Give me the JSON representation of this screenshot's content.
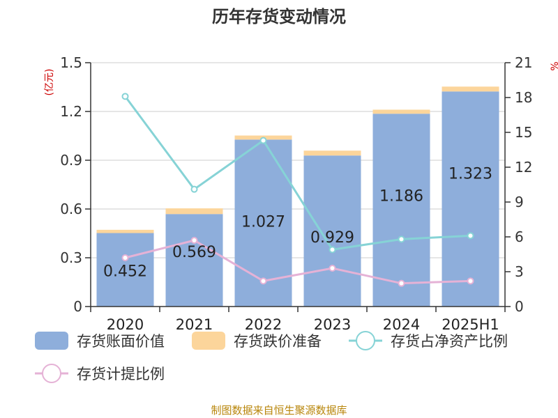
{
  "chart_data": {
    "type": "bar",
    "title": "历年存货变动情况",
    "left_unit": "(亿元)",
    "right_unit": "%",
    "categories": [
      "2020",
      "2021",
      "2022",
      "2023",
      "2024",
      "2025H1"
    ],
    "left_axis": {
      "ylim": [
        0,
        1.5
      ],
      "ticks": [
        "0",
        "0.3",
        "0.6",
        "0.9",
        "1.2",
        "1.5"
      ]
    },
    "right_axis": {
      "ylim": [
        0,
        21
      ],
      "ticks": [
        "0",
        "3",
        "6",
        "9",
        "12",
        "15",
        "18",
        "21"
      ]
    },
    "series": [
      {
        "name": "存货账面价值",
        "type": "bar",
        "axis": "left",
        "color": "#8eaedb",
        "stack": "inv",
        "values": [
          0.452,
          0.569,
          1.027,
          0.929,
          1.186,
          1.323
        ],
        "labels": [
          "0.452",
          "0.569",
          "1.027",
          "0.929",
          "1.186",
          "1.323"
        ]
      },
      {
        "name": "存货跌价准备",
        "type": "bar",
        "axis": "left",
        "color": "#fcd59b",
        "stack": "inv",
        "values": [
          0.02,
          0.035,
          0.025,
          0.03,
          0.025,
          0.03
        ]
      },
      {
        "name": "存货占净资产比例",
        "type": "line",
        "axis": "right",
        "color": "#86d3d6",
        "values": [
          18.1,
          10.1,
          14.3,
          4.9,
          5.8,
          6.1
        ]
      },
      {
        "name": "存货计提比例",
        "type": "line",
        "axis": "right",
        "color": "#e5b2d6",
        "values": [
          4.2,
          5.7,
          2.2,
          3.3,
          2.0,
          2.2
        ]
      }
    ],
    "grid": true,
    "legend_position": "bottom"
  },
  "source_text": "制图数据来自恒生聚源数据库"
}
